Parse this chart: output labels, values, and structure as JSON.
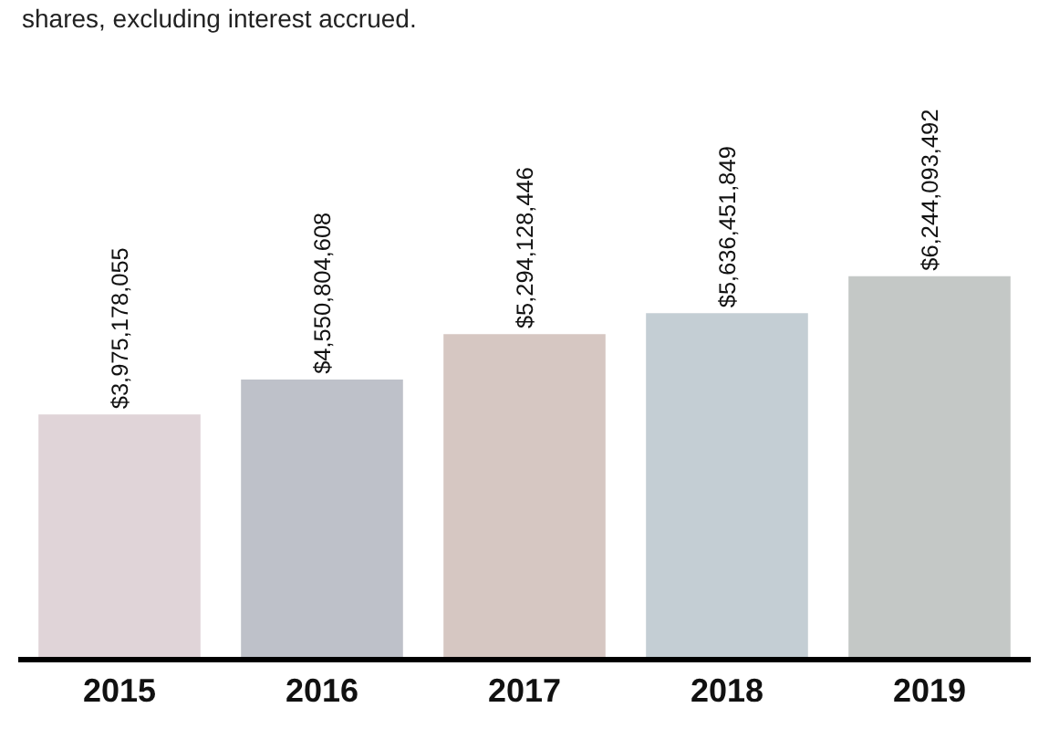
{
  "chart_data": {
    "type": "bar",
    "subtitle": "shares, excluding interest accrued.",
    "categories": [
      "2015",
      "2016",
      "2017",
      "2018",
      "2019"
    ],
    "values": [
      3975178055,
      4550804608,
      5294128446,
      5636451849,
      6244093492
    ],
    "value_labels": [
      "$3,975,178,055",
      "$4,550,804,608",
      "$5,294,128,446",
      "$5,636,451,849",
      "$6,244,093,492"
    ],
    "colors": [
      "#e0d4d8",
      "#bec1c9",
      "#d6c7c2",
      "#c4ced4",
      "#c4c8c6"
    ]
  }
}
